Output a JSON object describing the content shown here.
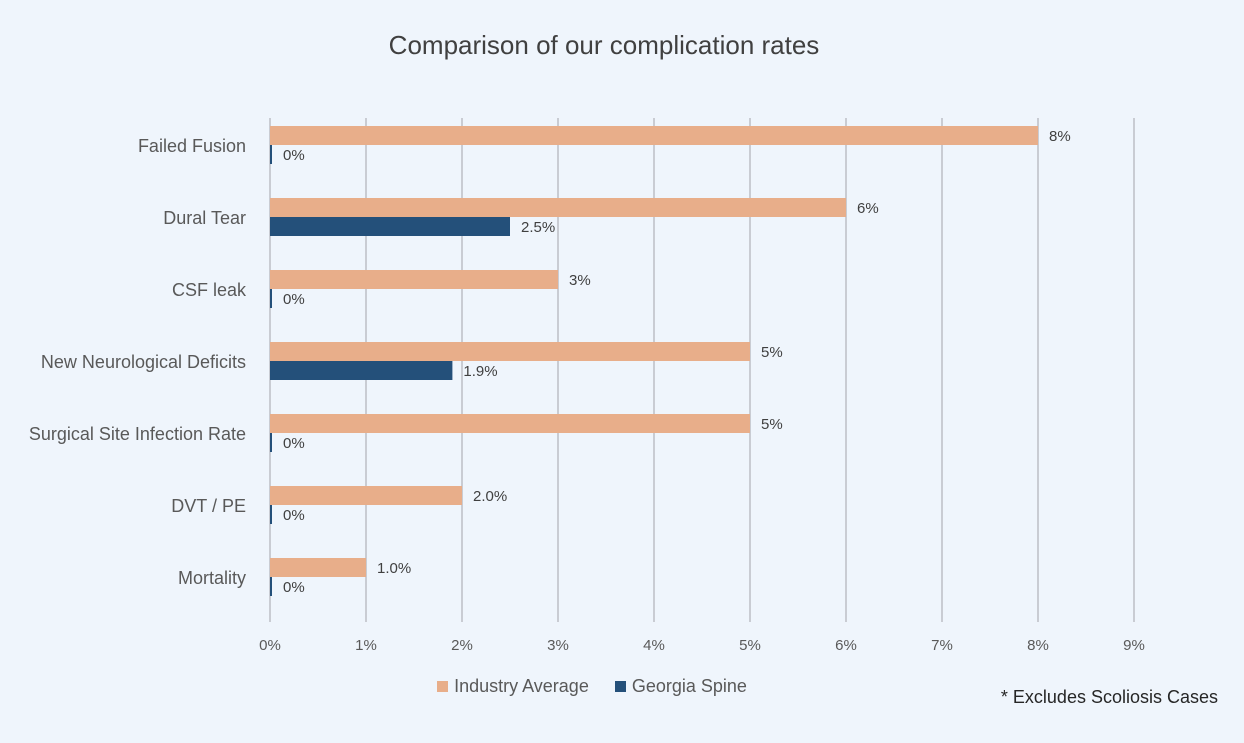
{
  "chart_data": {
    "type": "bar",
    "orientation": "horizontal",
    "title": "Comparison of our complication rates",
    "categories": [
      "Failed Fusion",
      "Dural Tear",
      "CSF leak",
      "New Neurological Deficits",
      "Surgical Site Infection Rate",
      "DVT / PE",
      "Mortality"
    ],
    "series": [
      {
        "name": "Industry Average",
        "color": "#e8ae8a",
        "values": [
          8,
          6,
          3,
          5,
          5,
          2.0,
          1.0
        ],
        "labels": [
          "8%",
          "6%",
          "3%",
          "5%",
          "5%",
          "2.0%",
          "1.0%"
        ]
      },
      {
        "name": "Georgia Spine",
        "color": "#24507a",
        "values": [
          0,
          2.5,
          0,
          1.9,
          0,
          0,
          0
        ],
        "labels": [
          "0%",
          "2.5%",
          "0%",
          "1.9%",
          "0%",
          "0%",
          "0%"
        ]
      }
    ],
    "xlim": [
      0,
      9
    ],
    "xticks": [
      "0%",
      "1%",
      "2%",
      "3%",
      "4%",
      "5%",
      "6%",
      "7%",
      "8%",
      "9%"
    ],
    "grid": true,
    "legend": "bottom"
  },
  "footnote": "* Excludes Scoliosis Cases"
}
